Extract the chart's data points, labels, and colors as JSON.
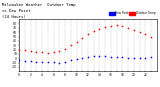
{
  "title": "Milwaukee Weather  Outdoor Temp",
  "title2": "vs Dew Point",
  "title3": "(24 Hours)",
  "title_fontsize": 2.8,
  "background_color": "#ffffff",
  "temp_color": "#ff0000",
  "dew_color": "#0000ff",
  "legend_temp_label": "Outdoor Temp",
  "legend_dew_label": "Dew Point",
  "xlim": [
    0,
    24
  ],
  "ylim": [
    -30,
    90
  ],
  "hours": [
    0,
    1,
    2,
    3,
    4,
    5,
    6,
    7,
    8,
    9,
    10,
    11,
    12,
    13,
    14,
    15,
    16,
    17,
    18,
    19,
    20,
    21,
    22,
    23
  ],
  "temp_values": [
    20,
    18,
    16,
    15,
    14,
    13,
    14,
    16,
    22,
    30,
    38,
    46,
    55,
    62,
    68,
    72,
    75,
    76,
    74,
    70,
    65,
    60,
    55,
    50
  ],
  "dew_values": [
    -5,
    -6,
    -7,
    -8,
    -8,
    -9,
    -9,
    -10,
    -8,
    -5,
    -2,
    1,
    4,
    5,
    6,
    5,
    4,
    3,
    2,
    1,
    0,
    0,
    1,
    2
  ],
  "grid_color": "#aaaaaa",
  "tick_fontsize": 2.2,
  "marker_size": 1.5,
  "yticks": [
    -20,
    -10,
    0,
    10,
    20,
    30,
    40,
    50,
    60,
    70,
    80
  ],
  "xtick_step": 2
}
